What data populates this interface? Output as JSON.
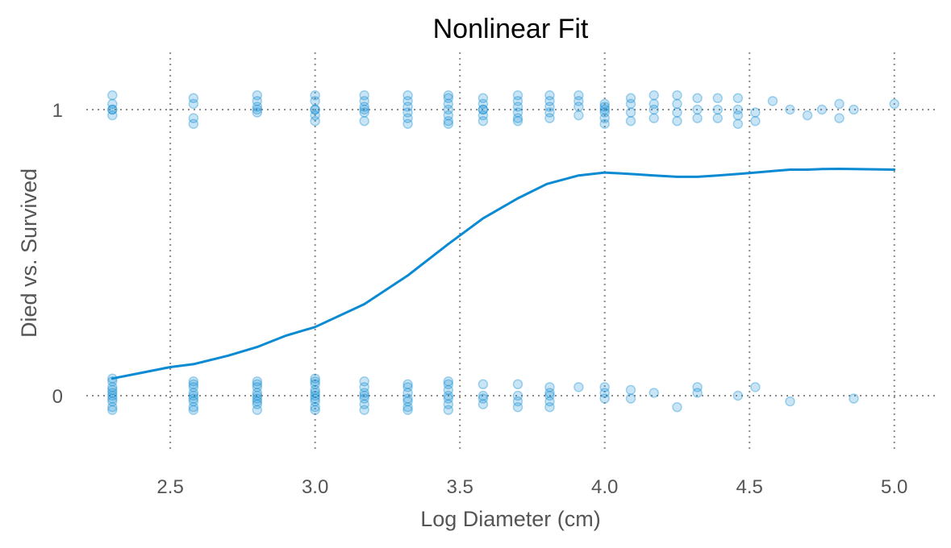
{
  "chart_data": {
    "type": "scatter",
    "title": "Nonlinear Fit",
    "xlabel": "Log Diameter (cm)",
    "ylabel": "Died vs. Survived",
    "xlim": [
      2.21,
      5.14
    ],
    "ylim": [
      -0.2,
      1.2
    ],
    "x_ticks": [
      2.5,
      3.0,
      3.5,
      4.0,
      4.5,
      5.0
    ],
    "x_tick_labels": [
      "2.5",
      "3.0",
      "3.5",
      "4.0",
      "4.5",
      "5.0"
    ],
    "y_ticks": [
      0,
      1
    ],
    "y_tick_labels": [
      "0",
      "1"
    ],
    "grid": "dotted",
    "legend": "none",
    "colors": {
      "accent": "#0a8ad2",
      "grid": "#8c8c8c",
      "text": "#555555"
    },
    "scatter_series": [
      {
        "x": [
          2.3,
          2.3,
          2.3,
          2.3,
          2.3,
          2.58,
          2.58,
          2.58,
          2.58,
          2.8,
          2.8,
          2.8,
          2.8,
          2.8,
          3.0,
          3.0,
          3.0,
          3.0,
          3.0,
          3.0,
          3.17,
          3.17,
          3.17,
          3.17,
          3.17,
          3.17,
          3.32,
          3.32,
          3.32,
          3.32,
          3.32,
          3.32,
          3.46,
          3.46,
          3.46,
          3.46,
          3.46,
          3.46,
          3.46,
          3.58,
          3.58,
          3.58,
          3.58,
          3.58,
          3.58,
          3.7,
          3.7,
          3.7,
          3.7,
          3.7,
          3.7,
          3.81,
          3.81,
          3.81,
          3.81,
          3.81,
          3.91,
          3.91,
          3.91,
          3.91,
          4.0,
          4.0,
          4.0,
          4.0,
          4.0,
          4.0,
          4.09,
          4.09,
          4.09,
          4.09,
          4.17,
          4.17,
          4.17,
          4.17,
          4.25,
          4.25,
          4.25,
          4.25,
          4.32,
          4.32,
          4.32,
          4.39,
          4.39,
          4.39,
          4.46,
          4.46,
          4.46,
          4.46,
          4.52,
          4.52,
          4.58,
          4.64,
          4.7,
          4.75,
          4.81,
          4.81,
          4.86,
          5.0
        ],
        "y": [
          1.05,
          1.02,
          1.0,
          0.98,
          1.0,
          1.04,
          1.02,
          0.97,
          0.95,
          1.05,
          1.03,
          1.01,
          0.99,
          1.0,
          1.05,
          1.03,
          1.0,
          0.98,
          0.96,
          1.0,
          1.05,
          1.03,
          1.01,
          0.99,
          0.96,
          1.0,
          1.05,
          1.03,
          1.01,
          0.99,
          0.97,
          0.95,
          1.05,
          1.04,
          1.02,
          1.0,
          0.98,
          0.96,
          0.95,
          1.04,
          1.02,
          1.0,
          0.98,
          0.96,
          1.0,
          1.05,
          1.03,
          1.01,
          0.99,
          0.97,
          0.96,
          1.05,
          1.03,
          1.01,
          0.99,
          0.97,
          1.05,
          1.03,
          1.01,
          0.98,
          1.02,
          1.01,
          1.0,
          0.99,
          0.97,
          0.95,
          1.04,
          1.02,
          0.99,
          0.96,
          1.05,
          1.02,
          1.0,
          0.97,
          1.05,
          1.02,
          0.99,
          0.96,
          1.04,
          1.0,
          0.97,
          1.04,
          1.0,
          0.97,
          1.04,
          1.0,
          0.98,
          0.95,
          0.99,
          0.96,
          1.03,
          1.0,
          0.98,
          1.0,
          1.02,
          0.97,
          1.0,
          1.02
        ]
      },
      {
        "x": [
          2.3,
          2.3,
          2.3,
          2.3,
          2.3,
          2.3,
          2.3,
          2.3,
          2.3,
          2.3,
          2.58,
          2.58,
          2.58,
          2.58,
          2.58,
          2.58,
          2.58,
          2.58,
          2.58,
          2.8,
          2.8,
          2.8,
          2.8,
          2.8,
          2.8,
          2.8,
          2.8,
          2.8,
          3.0,
          3.0,
          3.0,
          3.0,
          3.0,
          3.0,
          3.0,
          3.0,
          3.0,
          3.0,
          3.17,
          3.17,
          3.17,
          3.17,
          3.17,
          3.17,
          3.17,
          3.32,
          3.32,
          3.32,
          3.32,
          3.32,
          3.32,
          3.32,
          3.46,
          3.46,
          3.46,
          3.46,
          3.46,
          3.46,
          3.46,
          3.58,
          3.58,
          3.58,
          3.58,
          3.7,
          3.7,
          3.7,
          3.7,
          3.81,
          3.81,
          3.81,
          3.81,
          3.81,
          3.91,
          4.0,
          4.0,
          4.0,
          4.09,
          4.09,
          4.17,
          4.25,
          4.32,
          4.32,
          4.46,
          4.52,
          4.64,
          4.86
        ],
        "y": [
          0.06,
          0.05,
          0.03,
          0.02,
          0.01,
          0.0,
          -0.01,
          -0.02,
          -0.04,
          -0.05,
          0.05,
          0.04,
          0.03,
          0.01,
          0.0,
          -0.01,
          -0.02,
          -0.04,
          -0.05,
          0.05,
          0.04,
          0.03,
          0.01,
          0.0,
          -0.01,
          -0.02,
          -0.03,
          -0.05,
          0.06,
          0.05,
          0.04,
          0.02,
          0.01,
          0.0,
          -0.01,
          -0.02,
          -0.04,
          -0.05,
          0.05,
          0.03,
          0.01,
          0.0,
          -0.01,
          -0.03,
          -0.05,
          0.04,
          0.03,
          0.01,
          -0.01,
          -0.02,
          -0.04,
          -0.05,
          0.05,
          0.04,
          0.02,
          0.0,
          -0.01,
          -0.03,
          -0.05,
          0.04,
          0.0,
          -0.01,
          -0.03,
          0.04,
          0.0,
          -0.02,
          -0.04,
          0.03,
          0.01,
          0.0,
          -0.02,
          -0.04,
          0.03,
          0.03,
          0.01,
          -0.01,
          0.02,
          -0.01,
          0.01,
          -0.04,
          0.03,
          0.01,
          0.0,
          0.03,
          -0.02,
          -0.01
        ]
      }
    ],
    "series": [
      {
        "type": "line",
        "x": [
          2.3,
          2.4,
          2.5,
          2.58,
          2.7,
          2.8,
          2.9,
          3.0,
          3.17,
          3.32,
          3.46,
          3.58,
          3.7,
          3.8,
          3.91,
          4.0,
          4.09,
          4.17,
          4.25,
          4.32,
          4.39,
          4.46,
          4.52,
          4.58,
          4.64,
          4.7,
          4.75,
          4.81,
          4.86,
          5.0
        ],
        "y": [
          0.06,
          0.08,
          0.1,
          0.11,
          0.14,
          0.17,
          0.21,
          0.24,
          0.32,
          0.42,
          0.53,
          0.62,
          0.69,
          0.74,
          0.77,
          0.78,
          0.775,
          0.77,
          0.765,
          0.765,
          0.77,
          0.775,
          0.78,
          0.785,
          0.79,
          0.79,
          0.792,
          0.793,
          0.792,
          0.79
        ]
      }
    ]
  }
}
